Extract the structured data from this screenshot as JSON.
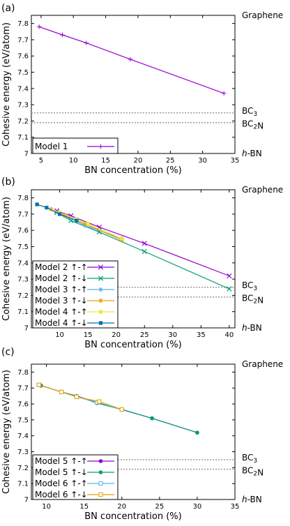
{
  "chart_data": [
    {
      "type": "line",
      "panel_label": "(a)",
      "xlabel": "BN concentration (%)",
      "ylabel": "Cohesive energy (eV/atom)",
      "xlim": [
        3.5,
        35
      ],
      "ylim": [
        7,
        7.85
      ],
      "xticks": [
        5,
        10,
        15,
        20,
        25,
        30,
        35
      ],
      "yticks": [
        7,
        7.1,
        7.2,
        7.3,
        7.4,
        7.5,
        7.6,
        7.7,
        7.8
      ],
      "grid": false,
      "legend": "bottom-left",
      "reference_lines": [
        {
          "label": "Graphene",
          "value": 7.85,
          "style": "solid"
        },
        {
          "label": "BC3",
          "value": 7.25,
          "style": "dotted"
        },
        {
          "label": "BC2N",
          "value": 7.19,
          "style": "dotted"
        },
        {
          "label": "h-BN",
          "value": 7.0,
          "style": "none"
        }
      ],
      "series": [
        {
          "name": "Model 1",
          "color": "#9400d3",
          "marker": "plus",
          "x": [
            4.7,
            8.3,
            12.0,
            18.8,
            33.3
          ],
          "y": [
            7.78,
            7.73,
            7.68,
            7.58,
            7.37
          ]
        }
      ]
    },
    {
      "type": "line",
      "panel_label": "(b)",
      "xlabel": "BN concentration (%)",
      "ylabel": "Cohesive energy (eV/atom)",
      "xlim": [
        5,
        41
      ],
      "ylim": [
        7,
        7.85
      ],
      "xticks": [
        10,
        15,
        20,
        25,
        30,
        35,
        40
      ],
      "yticks": [
        7,
        7.1,
        7.2,
        7.3,
        7.4,
        7.5,
        7.6,
        7.7,
        7.8
      ],
      "grid": false,
      "legend": "bottom-left",
      "reference_lines": [
        {
          "label": "Graphene",
          "value": 7.85,
          "style": "solid"
        },
        {
          "label": "BC3",
          "value": 7.25,
          "style": "dotted"
        },
        {
          "label": "BC2N",
          "value": 7.19,
          "style": "dotted"
        },
        {
          "label": "h-BN",
          "value": 7.0,
          "style": "none"
        }
      ],
      "series": [
        {
          "name": "Model 2 ↑-↑",
          "color": "#9400d3",
          "marker": "x",
          "x": [
            9.5,
            12.0,
            17.0,
            25.0,
            40.0
          ],
          "y": [
            7.72,
            7.69,
            7.62,
            7.52,
            7.32
          ]
        },
        {
          "name": "Model 2 ↑-↓",
          "color": "#009e73",
          "marker": "x",
          "x": [
            9.5,
            12.0,
            17.0,
            25.0,
            40.0
          ],
          "y": [
            7.71,
            7.66,
            7.59,
            7.47,
            7.24
          ]
        },
        {
          "name": "Model 3 ↑-↑",
          "color": "#56b4e9",
          "marker": "star",
          "x": [
            8.5,
            11.0,
            14.5,
            21.0
          ],
          "y": [
            7.73,
            7.69,
            7.63,
            7.55
          ]
        },
        {
          "name": "Model 3 ↑-↓",
          "color": "#e69f00",
          "marker": "star",
          "x": [
            8.5,
            11.0,
            14.5,
            21.0
          ],
          "y": [
            7.73,
            7.69,
            7.64,
            7.54
          ]
        },
        {
          "name": "Model 4 ↑-↑",
          "color": "#f0e442",
          "marker": "square",
          "x": [
            6.0,
            7.7,
            10.0,
            13.0,
            15.0,
            21.0
          ],
          "y": [
            7.76,
            7.74,
            7.71,
            7.67,
            7.64,
            7.55
          ]
        },
        {
          "name": "Model 4 ↑-↓",
          "color": "#0072b2",
          "marker": "square",
          "x": [
            6.0,
            7.7,
            10.0,
            13.0
          ],
          "y": [
            7.76,
            7.74,
            7.7,
            7.66
          ]
        }
      ]
    },
    {
      "type": "line",
      "panel_label": "(c)",
      "xlabel": "BN concentration (%)",
      "ylabel": "Cohesive energy (eV/atom)",
      "xlim": [
        8,
        35
      ],
      "ylim": [
        7,
        7.85
      ],
      "xticks": [
        10,
        15,
        20,
        25,
        30,
        35
      ],
      "yticks": [
        7,
        7.1,
        7.2,
        7.3,
        7.4,
        7.5,
        7.6,
        7.7,
        7.8
      ],
      "grid": false,
      "legend": "bottom-left",
      "reference_lines": [
        {
          "label": "Graphene",
          "value": 7.85,
          "style": "solid"
        },
        {
          "label": "BC3",
          "value": 7.25,
          "style": "dotted"
        },
        {
          "label": "BC2N",
          "value": 7.19,
          "style": "dotted"
        },
        {
          "label": "h-BN",
          "value": 7.0,
          "style": "none"
        }
      ],
      "series": [
        {
          "name": "Model 5 ↑-↑",
          "color": "#9400d3",
          "marker": "circle",
          "x": [
            9.3,
            12.0,
            14.0,
            16.7,
            20.0,
            24.0,
            30.0
          ],
          "y": [
            7.715,
            7.675,
            7.65,
            7.61,
            7.565,
            7.51,
            7.42
          ]
        },
        {
          "name": "Model 5 ↑-↓",
          "color": "#009e73",
          "marker": "circle",
          "x": [
            9.3,
            12.0,
            14.0,
            16.7,
            20.0,
            24.0,
            30.0
          ],
          "y": [
            7.715,
            7.675,
            7.65,
            7.605,
            7.565,
            7.51,
            7.42
          ]
        },
        {
          "name": "Model 6 ↑-↑",
          "color": "#56b4e9",
          "marker": "square-open",
          "x": [
            9.0,
            12.0,
            14.0,
            16.7,
            20.0
          ],
          "y": [
            7.72,
            7.675,
            7.645,
            7.61,
            7.565
          ]
        },
        {
          "name": "Model 6 ↑-↓",
          "color": "#e69f00",
          "marker": "square-open",
          "x": [
            9.0,
            12.0,
            14.0,
            17.0,
            20.0
          ],
          "y": [
            7.72,
            7.675,
            7.645,
            7.615,
            7.565
          ]
        }
      ]
    }
  ]
}
